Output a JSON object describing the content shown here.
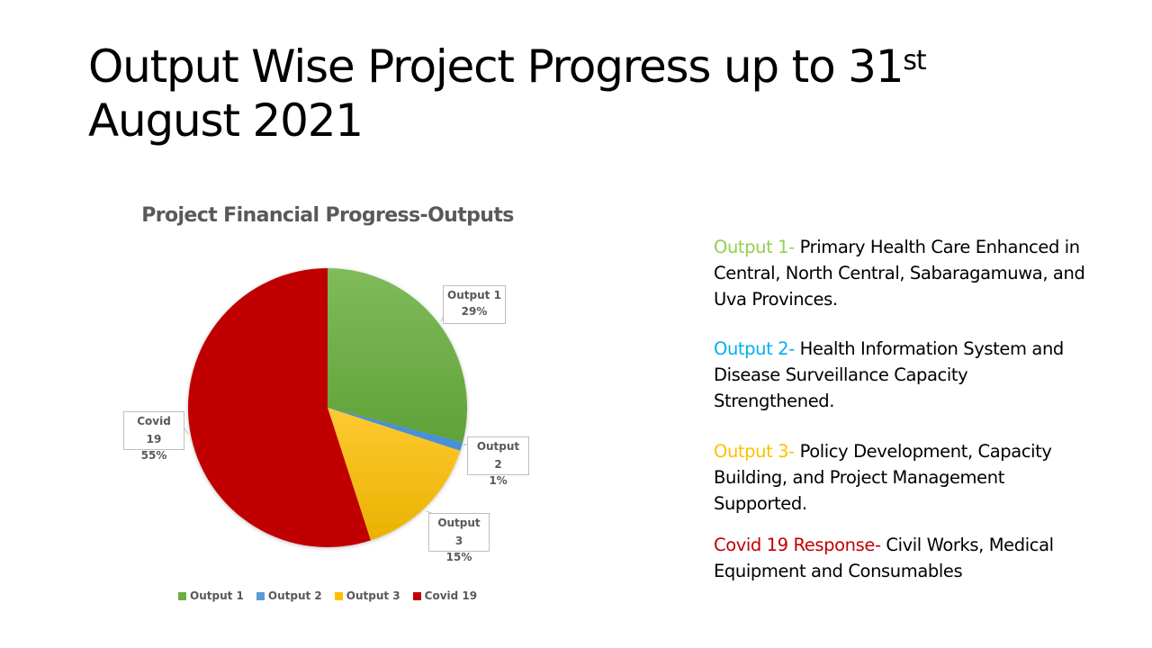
{
  "slide": {
    "title_main": "Output Wise Project Progress up to 31",
    "title_sup": "st",
    "title_line2": "August 2021"
  },
  "chart_data": {
    "type": "pie",
    "title": "Project Financial Progress-Outputs",
    "categories": [
      "Output 1",
      "Output 2",
      "Output 3",
      "Covid 19"
    ],
    "values": [
      29,
      1,
      15,
      55
    ],
    "unit": "%",
    "colors": [
      "#70ad47",
      "#4a90d9",
      "#ffc000",
      "#c00000"
    ],
    "start_angle": "12 o'clock, clockwise",
    "legend_position": "bottom",
    "data_labels": [
      {
        "name": "Output 1",
        "value": "29%"
      },
      {
        "name": "Output 2",
        "value": "1%"
      },
      {
        "name": "Output 3",
        "value": "15%"
      },
      {
        "name": "Covid 19",
        "value": "55%"
      }
    ]
  },
  "legend": [
    {
      "label": "Output 1",
      "color": "#70ad47"
    },
    {
      "label": "Output 2",
      "color": "#5b9bd5"
    },
    {
      "label": "Output 3",
      "color": "#ffc000"
    },
    {
      "label": "Covid 19",
      "color": "#c00000"
    }
  ],
  "descriptions": [
    {
      "prefix": "Output 1- ",
      "prefix_color": "#92d050",
      "text": "Primary Health Care Enhanced in Central, North Central, Sabaragamuwa, and Uva Provinces."
    },
    {
      "prefix": "Output 2- ",
      "prefix_color": "#00b0f0",
      "text": "Health Information System and Disease Surveillance Capacity Strengthened."
    },
    {
      "prefix": "Output 3- ",
      "prefix_color": "#ffc000",
      "text": "Policy Development, Capacity Building, and Project Management Supported."
    },
    {
      "prefix": "Covid 19 Response- ",
      "prefix_color": "#c00000",
      "text": "Civil Works, Medical Equipment and Consumables"
    }
  ]
}
